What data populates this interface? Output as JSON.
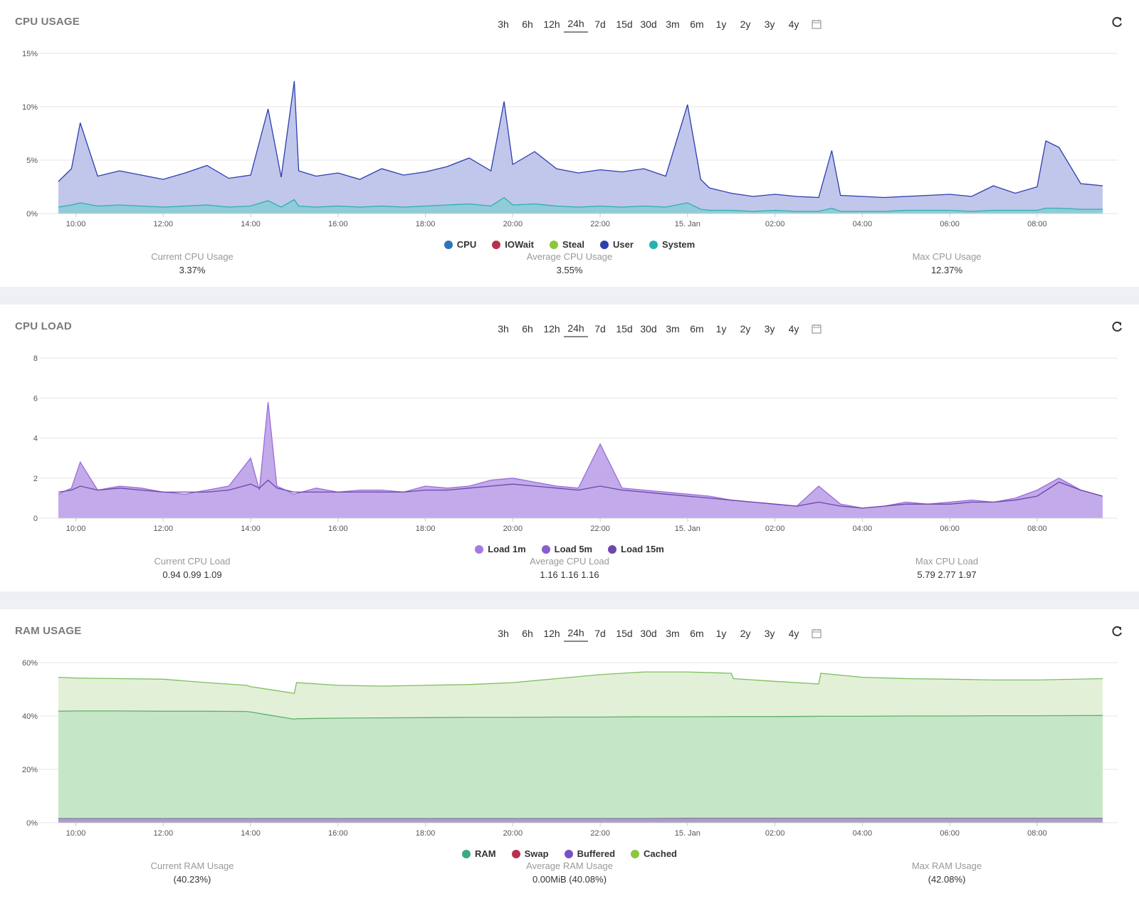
{
  "range_options": [
    "3h",
    "6h",
    "12h",
    "24h",
    "7d",
    "15d",
    "30d",
    "3m",
    "6m",
    "1y",
    "2y",
    "3y",
    "4y"
  ],
  "active_range": "24h",
  "x_ticks": [
    "10:00",
    "12:00",
    "14:00",
    "16:00",
    "18:00",
    "20:00",
    "22:00",
    "15. Jan",
    "02:00",
    "04:00",
    "06:00",
    "08:00"
  ],
  "panels": [
    {
      "title": "CPU USAGE",
      "legend": [
        {
          "label": "CPU",
          "color": "#2f73b9"
        },
        {
          "label": "IOWait",
          "color": "#b8324f"
        },
        {
          "label": "Steal",
          "color": "#8cc63f"
        },
        {
          "label": "User",
          "color": "#2b3fb0"
        },
        {
          "label": "System",
          "color": "#2ab0b0"
        }
      ],
      "stats": [
        {
          "label": "Current CPU Usage",
          "value": "3.37%"
        },
        {
          "label": "Average CPU Usage",
          "value": "3.55%"
        },
        {
          "label": "Max CPU Usage",
          "value": "12.37%"
        }
      ]
    },
    {
      "title": "CPU LOAD",
      "legend": [
        {
          "label": "Load 1m",
          "color": "#a37be0"
        },
        {
          "label": "Load 5m",
          "color": "#8a5ccf"
        },
        {
          "label": "Load 15m",
          "color": "#6c47a8"
        }
      ],
      "stats": [
        {
          "label": "Current CPU Load",
          "value": "0.94 0.99 1.09"
        },
        {
          "label": "Average CPU Load",
          "value": "1.16 1.16 1.16"
        },
        {
          "label": "Max CPU Load",
          "value": "5.79 2.77 1.97"
        }
      ]
    },
    {
      "title": "RAM USAGE",
      "legend": [
        {
          "label": "RAM",
          "color": "#3aa887"
        },
        {
          "label": "Swap",
          "color": "#b8324f"
        },
        {
          "label": "Buffered",
          "color": "#7b4fc4"
        },
        {
          "label": "Cached",
          "color": "#8cc63f"
        }
      ],
      "stats": [
        {
          "label": "Current RAM Usage",
          "value": "(40.23%)"
        },
        {
          "label": "Average RAM Usage",
          "value": "0.00MiB (40.08%)"
        },
        {
          "label": "Max RAM Usage",
          "value": "(42.08%)"
        }
      ]
    }
  ],
  "chart_data": [
    {
      "type": "area",
      "y_ticks": [
        "0%",
        "5%",
        "10%",
        "15%"
      ],
      "ylim": [
        0,
        15
      ],
      "x_hours": [
        9.6,
        9.9,
        10.1,
        10.5,
        11.0,
        11.5,
        12.0,
        12.5,
        13.0,
        13.5,
        14.0,
        14.4,
        14.7,
        15.0,
        15.1,
        15.5,
        16.0,
        16.5,
        17.0,
        17.5,
        18.0,
        18.5,
        19.0,
        19.5,
        19.8,
        20.0,
        20.5,
        21.0,
        21.5,
        22.0,
        22.5,
        23.0,
        23.5,
        24.0,
        24.3,
        24.5,
        25.0,
        25.5,
        26.0,
        26.5,
        27.0,
        27.3,
        27.5,
        28.0,
        28.5,
        29.0,
        29.5,
        30.0,
        30.5,
        31.0,
        31.5,
        32.0,
        32.2,
        32.5,
        33.0,
        33.5
      ],
      "series": [
        {
          "name": "User",
          "values": [
            3.0,
            4.2,
            8.5,
            3.5,
            4.0,
            3.6,
            3.2,
            3.8,
            4.5,
            3.3,
            3.6,
            9.8,
            3.4,
            12.4,
            4.0,
            3.5,
            3.8,
            3.2,
            4.2,
            3.6,
            3.9,
            4.4,
            5.2,
            4.0,
            10.5,
            4.6,
            5.8,
            4.2,
            3.8,
            4.1,
            3.9,
            4.2,
            3.5,
            10.2,
            3.2,
            2.4,
            1.9,
            1.6,
            1.8,
            1.6,
            1.5,
            5.9,
            1.7,
            1.6,
            1.5,
            1.6,
            1.7,
            1.8,
            1.6,
            2.6,
            1.9,
            2.5,
            6.8,
            6.2,
            2.8,
            2.6
          ]
        },
        {
          "name": "System",
          "values": [
            0.6,
            0.8,
            1.0,
            0.7,
            0.8,
            0.7,
            0.6,
            0.7,
            0.8,
            0.6,
            0.7,
            1.2,
            0.6,
            1.3,
            0.7,
            0.6,
            0.7,
            0.6,
            0.7,
            0.6,
            0.7,
            0.8,
            0.9,
            0.7,
            1.5,
            0.8,
            0.9,
            0.7,
            0.6,
            0.7,
            0.6,
            0.7,
            0.6,
            1.0,
            0.4,
            0.3,
            0.3,
            0.2,
            0.3,
            0.2,
            0.2,
            0.5,
            0.2,
            0.2,
            0.2,
            0.3,
            0.3,
            0.3,
            0.2,
            0.3,
            0.3,
            0.3,
            0.5,
            0.5,
            0.4,
            0.4
          ]
        }
      ]
    },
    {
      "type": "area",
      "y_ticks": [
        "0",
        "2",
        "4",
        "6",
        "8"
      ],
      "ylim": [
        0,
        8
      ],
      "x_hours": [
        9.6,
        9.9,
        10.1,
        10.5,
        11.0,
        11.5,
        12.0,
        12.5,
        13.0,
        13.5,
        14.0,
        14.2,
        14.4,
        14.6,
        15.0,
        15.5,
        16.0,
        16.5,
        17.0,
        17.5,
        18.0,
        18.5,
        19.0,
        19.5,
        20.0,
        20.5,
        21.0,
        21.5,
        22.0,
        22.5,
        23.0,
        23.5,
        24.0,
        24.5,
        25.0,
        25.5,
        26.0,
        26.5,
        27.0,
        27.5,
        28.0,
        28.5,
        29.0,
        29.5,
        30.0,
        30.5,
        31.0,
        31.5,
        32.0,
        32.5,
        33.0,
        33.5
      ],
      "series": [
        {
          "name": "Load 1m",
          "values": [
            1.2,
            1.5,
            2.8,
            1.4,
            1.6,
            1.5,
            1.3,
            1.2,
            1.4,
            1.6,
            3.0,
            1.4,
            5.8,
            1.6,
            1.2,
            1.5,
            1.3,
            1.4,
            1.4,
            1.3,
            1.6,
            1.5,
            1.6,
            1.9,
            2.0,
            1.8,
            1.6,
            1.5,
            3.7,
            1.5,
            1.4,
            1.3,
            1.2,
            1.1,
            0.9,
            0.8,
            0.7,
            0.6,
            1.6,
            0.7,
            0.5,
            0.6,
            0.8,
            0.7,
            0.8,
            0.9,
            0.8,
            1.0,
            1.4,
            2.0,
            1.4,
            1.1
          ]
        },
        {
          "name": "Load 15m",
          "values": [
            1.3,
            1.4,
            1.6,
            1.4,
            1.5,
            1.4,
            1.3,
            1.3,
            1.3,
            1.4,
            1.7,
            1.5,
            1.9,
            1.5,
            1.3,
            1.3,
            1.3,
            1.3,
            1.3,
            1.3,
            1.4,
            1.4,
            1.5,
            1.6,
            1.7,
            1.6,
            1.5,
            1.4,
            1.6,
            1.4,
            1.3,
            1.2,
            1.1,
            1.0,
            0.9,
            0.8,
            0.7,
            0.6,
            0.8,
            0.6,
            0.5,
            0.6,
            0.7,
            0.7,
            0.7,
            0.8,
            0.8,
            0.9,
            1.1,
            1.8,
            1.4,
            1.1
          ]
        }
      ]
    },
    {
      "type": "area",
      "y_ticks": [
        "0%",
        "20%",
        "40%",
        "60%"
      ],
      "ylim": [
        0,
        60
      ],
      "x_hours": [
        9.6,
        10.0,
        11.0,
        12.0,
        13.0,
        13.9,
        14.0,
        15.0,
        15.05,
        16.0,
        17.0,
        18.0,
        19.0,
        20.0,
        21.0,
        22.0,
        23.0,
        24.0,
        25.0,
        25.05,
        26.0,
        27.0,
        27.05,
        28.0,
        29.0,
        30.0,
        31.0,
        32.0,
        33.5
      ],
      "series": [
        {
          "name": "Cached",
          "values": [
            54.5,
            54.2,
            54.0,
            53.8,
            52.5,
            51.5,
            51.0,
            48.5,
            52.5,
            51.5,
            51.2,
            51.5,
            51.8,
            52.5,
            54.0,
            55.5,
            56.5,
            56.5,
            56.0,
            54.0,
            53.0,
            52.0,
            56.0,
            54.5,
            54.0,
            53.8,
            53.5,
            53.5,
            54.0
          ]
        },
        {
          "name": "RAM",
          "values": [
            41.8,
            41.9,
            41.9,
            41.8,
            41.8,
            41.7,
            41.5,
            38.8,
            39.0,
            39.2,
            39.3,
            39.4,
            39.5,
            39.5,
            39.6,
            39.6,
            39.7,
            39.7,
            39.8,
            39.8,
            39.8,
            39.9,
            39.9,
            39.9,
            40.0,
            40.0,
            40.1,
            40.1,
            40.2
          ]
        },
        {
          "name": "Buffered",
          "values": [
            1.6,
            1.6,
            1.6,
            1.6,
            1.6,
            1.6,
            1.6,
            1.6,
            1.6,
            1.6,
            1.6,
            1.6,
            1.6,
            1.6,
            1.6,
            1.6,
            1.6,
            1.7,
            1.7,
            1.7,
            1.7,
            1.7,
            1.7,
            1.7,
            1.7,
            1.7,
            1.7,
            1.7,
            1.7
          ]
        }
      ]
    }
  ]
}
